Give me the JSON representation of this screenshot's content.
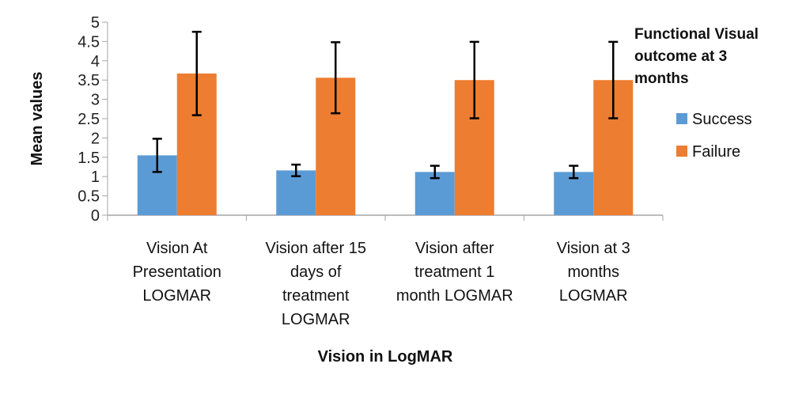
{
  "chart_data": {
    "type": "bar",
    "title": "",
    "xlabel": "Vision in LogMAR",
    "ylabel": "Mean values",
    "ylim": [
      0,
      5
    ],
    "yticks": [
      "0",
      "0.5",
      "1",
      "1.5",
      "2",
      "2.5",
      "3",
      "3.5",
      "4",
      "4.5",
      "5"
    ],
    "grid": false,
    "categories": [
      [
        "Vision At",
        "Presentation",
        "LOGMAR"
      ],
      [
        "Vision after 15",
        "days of",
        "treatment",
        "LOGMAR"
      ],
      [
        "Vision after",
        "treatment 1",
        "month LOGMAR"
      ],
      [
        "Vision at 3",
        "months",
        "LOGMAR"
      ]
    ],
    "series": [
      {
        "name": "Success",
        "color": "#5b9bd5",
        "values": [
          1.55,
          1.16,
          1.12,
          1.12
        ],
        "errors": [
          0.43,
          0.15,
          0.16,
          0.16
        ]
      },
      {
        "name": "Failure",
        "color": "#ed7d31",
        "values": [
          3.67,
          3.56,
          3.5,
          3.5
        ],
        "errors": [
          1.08,
          0.92,
          0.99,
          0.99
        ]
      }
    ],
    "legend": {
      "title": [
        "Functional Visual",
        "outcome at 3",
        "months"
      ],
      "placement": "right"
    }
  }
}
